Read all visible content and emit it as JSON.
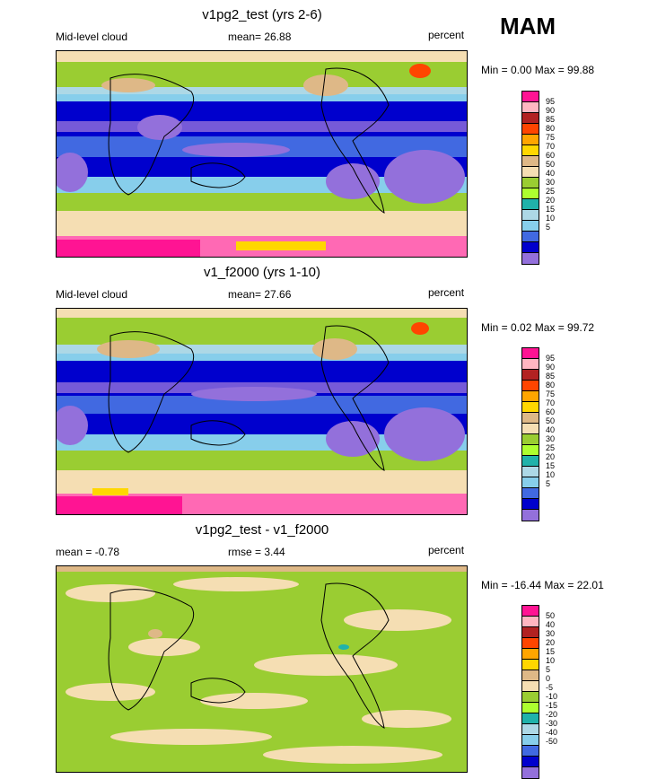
{
  "season": "MAM",
  "panels": [
    {
      "title": "v1pg2_test (yrs 2-6)",
      "left_label": "Mid-level cloud",
      "center_label": "mean=  26.88",
      "right_label": "percent",
      "minmax": "Min =   0.00 Max =  99.88",
      "legend_levels": [
        "95",
        "90",
        "85",
        "80",
        "75",
        "70",
        "60",
        "50",
        "40",
        "30",
        "25",
        "20",
        "15",
        "10",
        "5"
      ],
      "legend_colors": [
        "#ff1493",
        "#ffb6c1",
        "#b22222",
        "#ff4500",
        "#ffa500",
        "#ffd700",
        "#deb887",
        "#f5deb3",
        "#9acd32",
        "#adff2f",
        "#20b2aa",
        "#add8e6",
        "#87ceeb",
        "#4169e1",
        "#0000cd",
        "#9370db"
      ]
    },
    {
      "title": "v1_f2000 (yrs 1-10)",
      "left_label": "Mid-level cloud",
      "center_label": "mean=  27.66",
      "right_label": "percent",
      "minmax": "Min =   0.02 Max =  99.72",
      "legend_levels": [
        "95",
        "90",
        "85",
        "80",
        "75",
        "70",
        "60",
        "50",
        "40",
        "30",
        "25",
        "20",
        "15",
        "10",
        "5"
      ],
      "legend_colors": [
        "#ff1493",
        "#ffb6c1",
        "#b22222",
        "#ff4500",
        "#ffa500",
        "#ffd700",
        "#deb887",
        "#f5deb3",
        "#9acd32",
        "#adff2f",
        "#20b2aa",
        "#add8e6",
        "#87ceeb",
        "#4169e1",
        "#0000cd",
        "#9370db"
      ]
    },
    {
      "title": "v1pg2_test - v1_f2000",
      "left_label": "mean =  -0.78",
      "center_label": "rmse =    3.44",
      "right_label": "percent",
      "minmax": "Min = -16.44 Max =  22.01",
      "legend_levels": [
        "50",
        "40",
        "30",
        "20",
        "15",
        "10",
        "5",
        "0",
        "-5",
        "-10",
        "-15",
        "-20",
        "-30",
        "-40",
        "-50"
      ],
      "legend_colors": [
        "#ff1493",
        "#ffb6c1",
        "#b22222",
        "#ff4500",
        "#ffa500",
        "#ffd700",
        "#deb887",
        "#f5deb3",
        "#9acd32",
        "#adff2f",
        "#20b2aa",
        "#add8e6",
        "#87ceeb",
        "#4169e1",
        "#0000cd",
        "#9370db"
      ]
    }
  ]
}
